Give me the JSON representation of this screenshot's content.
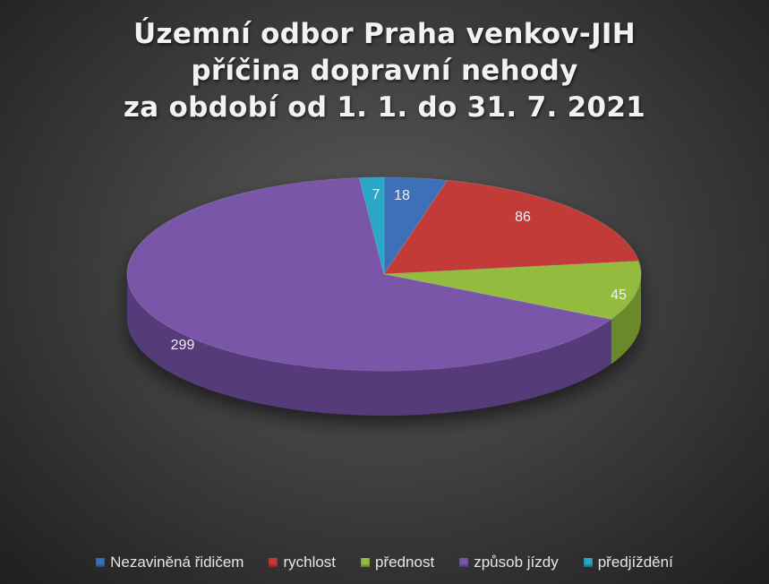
{
  "chart_data": {
    "type": "pie",
    "title_lines": [
      "Územní odbor Praha venkov-JIH",
      "příčina dopravní nehody",
      "za období od 1. 1. do 31. 7. 2021"
    ],
    "categories": [
      "Nezaviněná řidičem",
      "rychlost",
      "přednost",
      "způsob jízdy",
      "předjíždění"
    ],
    "values": [
      18,
      86,
      45,
      299,
      7
    ],
    "colors": [
      "#3c6fb6",
      "#c23b37",
      "#93bb3d",
      "#7a57a9",
      "#2aa6c6"
    ],
    "side_colors": [
      "#2a528a",
      "#8f2a27",
      "#6a8a2a",
      "#553a7a",
      "#1d7d96"
    ],
    "legend_position": "bottom",
    "style": "3d"
  }
}
